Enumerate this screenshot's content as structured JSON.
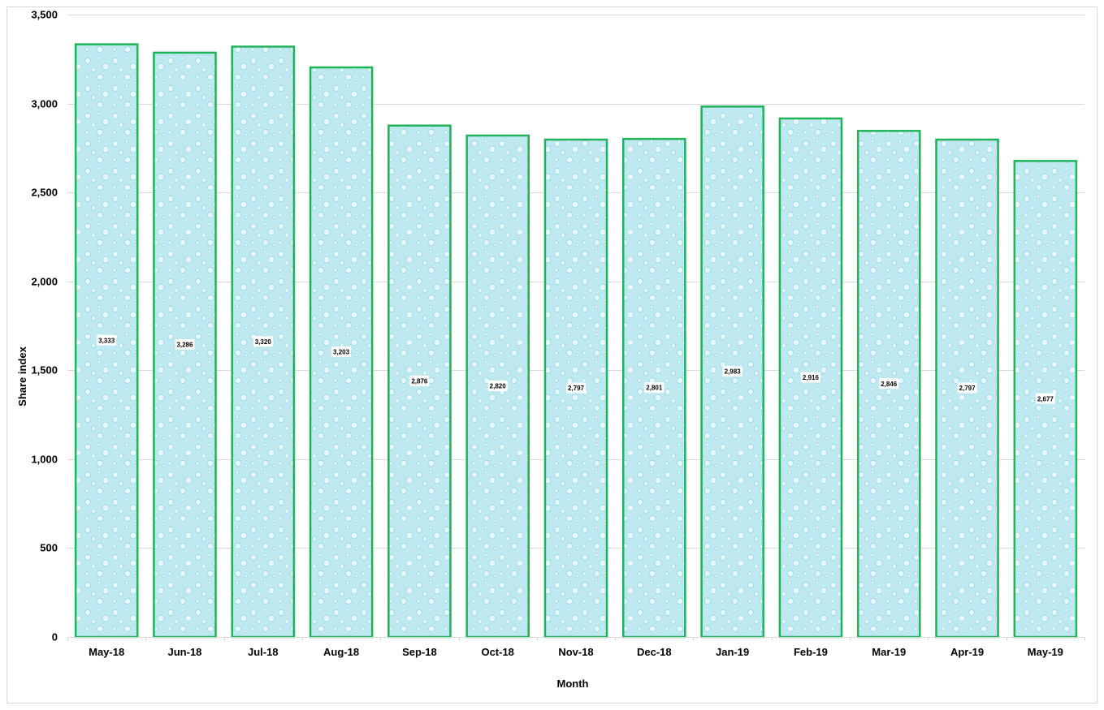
{
  "chart_data": {
    "type": "bar",
    "title": "",
    "xlabel": "Month",
    "ylabel": "Share index",
    "categories": [
      "May-18",
      "Jun-18",
      "Jul-18",
      "Aug-18",
      "Sep-18",
      "Oct-18",
      "Nov-18",
      "Dec-18",
      "Jan-19",
      "Feb-19",
      "Mar-19",
      "Apr-19",
      "May-19"
    ],
    "values": [
      3333,
      3286,
      3320,
      3203,
      2876,
      2820,
      2797,
      2801,
      2983,
      2916,
      2846,
      2797,
      2677
    ],
    "data_labels": [
      "3,333",
      "3,286",
      "3,320",
      "3,203",
      "2,876",
      "2,820",
      "2,797",
      "2,801",
      "2,983",
      "2,916",
      "2,846",
      "2,797",
      "2,677"
    ],
    "yticks": [
      0,
      500,
      1000,
      1500,
      2000,
      2500,
      3000,
      3500
    ],
    "ytick_labels": [
      "0",
      "500",
      "1,000",
      "1,500",
      "2,000",
      "2,500",
      "3,000",
      "3,500"
    ],
    "ylim": [
      0,
      3500
    ],
    "grid": true,
    "legend": "none",
    "colors": {
      "bar_fill": "#bde8ef",
      "bar_border": "#1fb35a",
      "gridline": "#d9d9d9",
      "frame": "#d9d9d9",
      "label_box": "#ffffff"
    }
  }
}
